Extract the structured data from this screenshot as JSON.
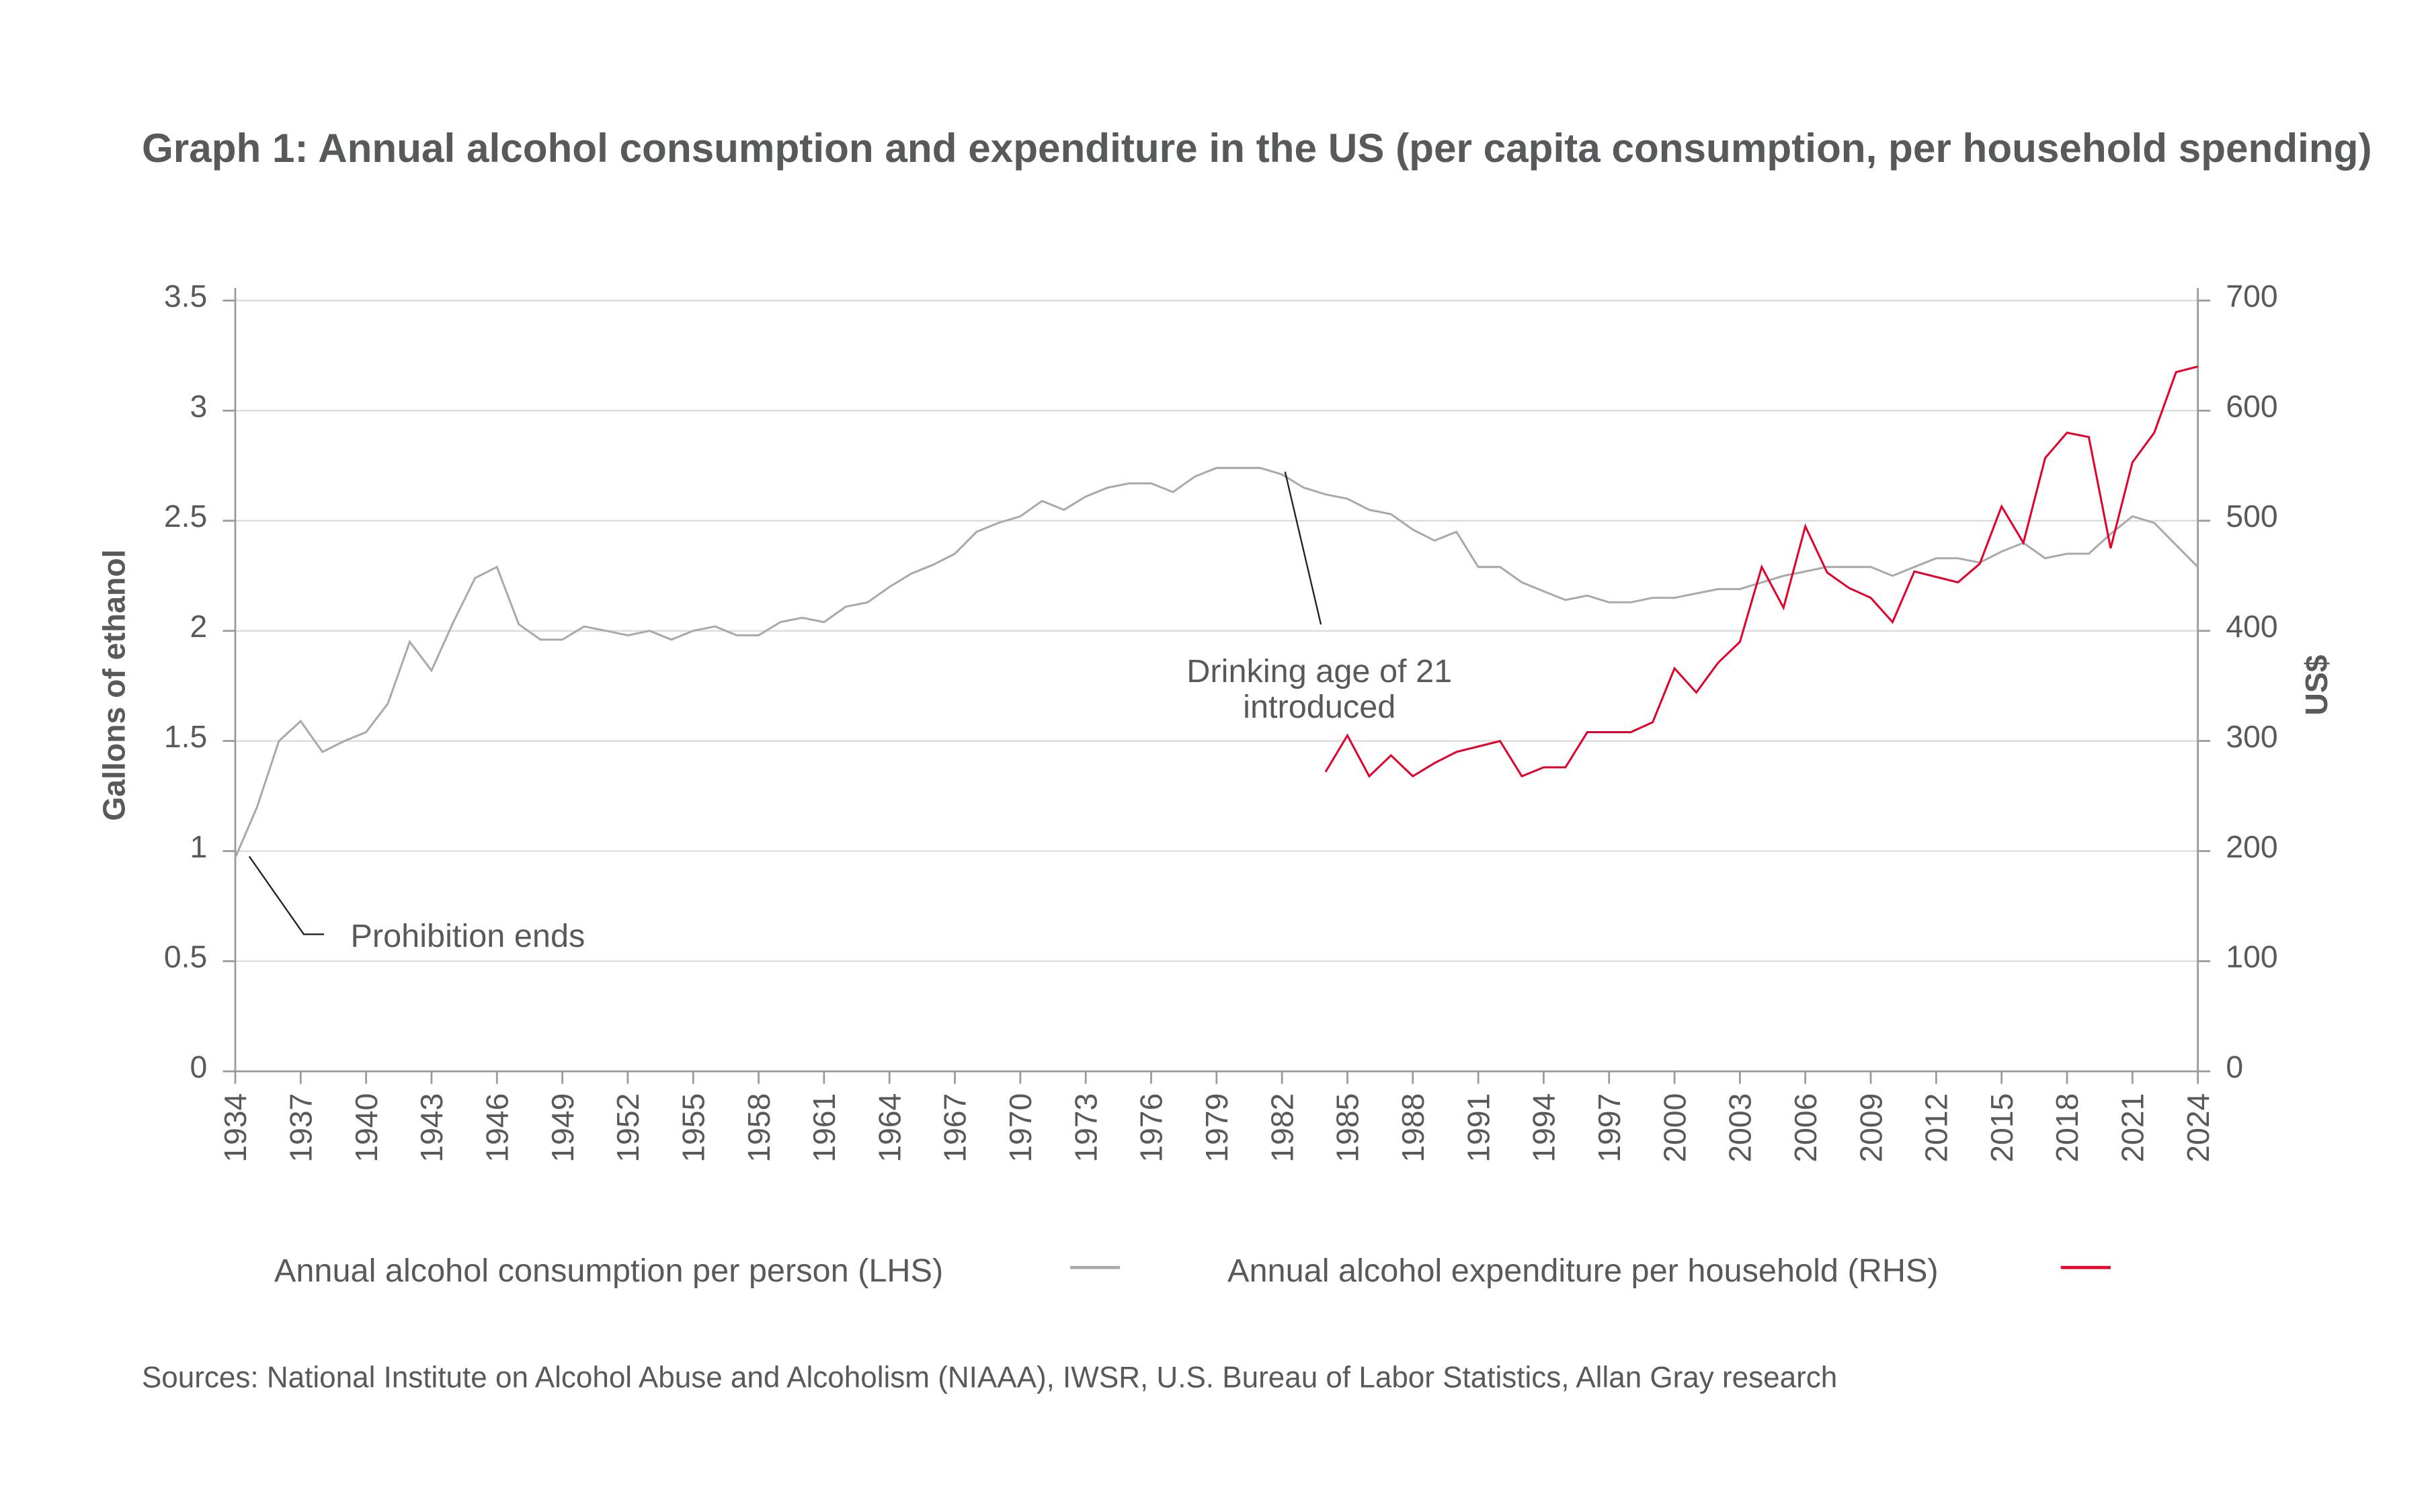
{
  "chart_data": {
    "type": "line",
    "title": "Graph 1: Annual alcohol consumption and expenditure in the US (per capita consumption, per household spending)",
    "ylabel_left": "Gallons of ethanol",
    "ylabel_right": "US$",
    "ylim_left": [
      0,
      3.5
    ],
    "ylim_right": [
      0,
      700
    ],
    "yticks_left": [
      "0",
      "0.5",
      "1",
      "1.5",
      "2",
      "2.5",
      "3",
      "3.5"
    ],
    "yticks_right": [
      "0",
      "100",
      "200",
      "300",
      "400",
      "500",
      "600",
      "700"
    ],
    "xlim": [
      1934,
      2024
    ],
    "xticks": [
      "1934",
      "1937",
      "1940",
      "1943",
      "1946",
      "1949",
      "1952",
      "1955",
      "1958",
      "1961",
      "1964",
      "1967",
      "1970",
      "1973",
      "1976",
      "1979",
      "1982",
      "1985",
      "1988",
      "1991",
      "1994",
      "1997",
      "2000",
      "2003",
      "2006",
      "2009",
      "2012",
      "2015",
      "2018",
      "2021",
      "2024"
    ],
    "grid": true,
    "legend_position": "bottom",
    "series": [
      {
        "name": "Annual alcohol consumption per person (LHS)",
        "axis": "left",
        "color": "#a7a9ac",
        "x_start": 1934,
        "values": [
          0.97,
          1.2,
          1.5,
          1.59,
          1.45,
          1.5,
          1.54,
          1.67,
          1.95,
          1.82,
          2.04,
          2.24,
          2.29,
          2.03,
          1.96,
          1.96,
          2.02,
          2.0,
          1.98,
          2.0,
          1.96,
          2.0,
          2.02,
          1.98,
          1.98,
          2.04,
          2.06,
          2.04,
          2.11,
          2.13,
          2.2,
          2.26,
          2.3,
          2.35,
          2.45,
          2.49,
          2.52,
          2.59,
          2.55,
          2.61,
          2.65,
          2.67,
          2.67,
          2.63,
          2.7,
          2.74,
          2.74,
          2.74,
          2.71,
          2.65,
          2.62,
          2.6,
          2.55,
          2.53,
          2.46,
          2.41,
          2.45,
          2.29,
          2.29,
          2.22,
          2.18,
          2.14,
          2.16,
          2.13,
          2.13,
          2.15,
          2.15,
          2.17,
          2.19,
          2.19,
          2.22,
          2.25,
          2.27,
          2.29,
          2.29,
          2.29,
          2.25,
          2.29,
          2.33,
          2.33,
          2.31,
          2.36,
          2.4,
          2.33,
          2.35,
          2.35,
          2.44,
          2.52,
          2.49,
          2.39,
          2.29
        ]
      },
      {
        "name": "Annual alcohol expenditure per household (RHS)",
        "axis": "right",
        "color": "#e4002b",
        "x_start": 1984,
        "values": [
          272,
          305,
          268,
          287,
          268,
          280,
          290,
          295,
          300,
          268,
          276,
          276,
          308,
          308,
          308,
          317,
          366,
          344,
          371,
          390,
          458,
          421,
          495,
          453,
          439,
          430,
          408,
          454,
          449,
          444,
          461,
          513,
          480,
          557,
          580,
          576,
          475,
          553,
          580,
          635,
          640
        ]
      }
    ],
    "annotations": [
      {
        "text": "Prohibition ends",
        "year": 1934
      },
      {
        "text_line1": "Drinking age of 21",
        "text_line2": "introduced",
        "year": 1983
      }
    ],
    "source": "Sources: National Institute on Alcohol Abuse and Alcoholism (NIAAA), IWSR, U.S. Bureau of Labor Statistics, Allan Gray research"
  }
}
